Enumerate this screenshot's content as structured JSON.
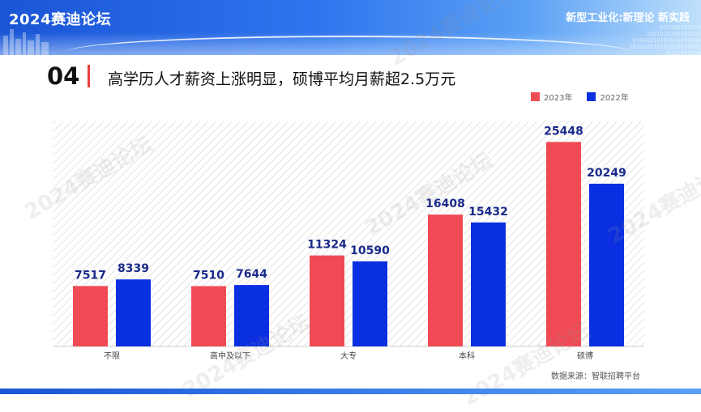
{
  "header": {
    "brand": "2024赛迪论坛",
    "slogan": "新型工业化:新理论 新实践",
    "binary_lines": [
      "010100101010",
      "1001010100101010",
      "01001010101001010100",
      "101010010101010010101",
      "0101001010"
    ]
  },
  "section": {
    "number": "04",
    "headline": "高学历人才薪资上涨明显，硕博平均月薪超2.5万元"
  },
  "watermark": "2024赛迪论坛",
  "colors": {
    "series_2023": "#f04b55",
    "series_2022": "#0a2fe0",
    "accent": "#e8413e"
  },
  "chart_data": {
    "type": "bar",
    "categories": [
      "不限",
      "高中及以下",
      "大专",
      "本科",
      "硕博"
    ],
    "series": [
      {
        "name": "2023年",
        "values": [
          7517,
          7510,
          11324,
          16408,
          25448
        ]
      },
      {
        "name": "2022年",
        "values": [
          8339,
          7644,
          10590,
          15432,
          20249
        ]
      }
    ],
    "title": "",
    "xlabel": "",
    "ylabel": "",
    "ylim": [
      0,
      28000
    ],
    "grid": false,
    "legend": "top-right",
    "data_labels": true
  },
  "source": "数据来源：智联招聘平台"
}
